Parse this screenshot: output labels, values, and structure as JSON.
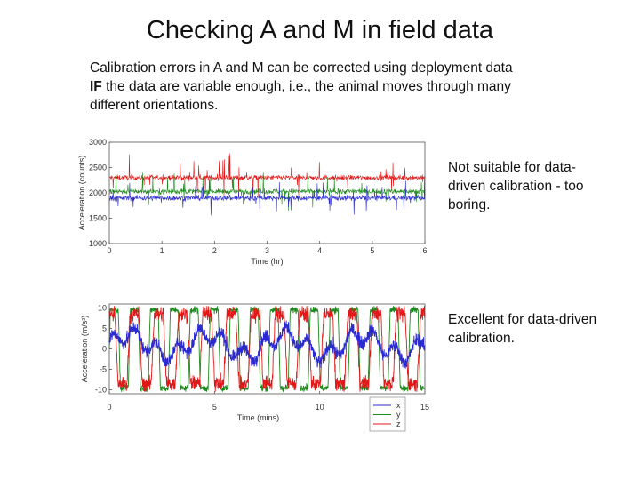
{
  "slide": {
    "title": "Checking A and M in field data",
    "intro_line1": "Calibration errors in A and M can be corrected using deployment data",
    "intro_bold": "IF",
    "intro_line2_rest": " the data are variable enough, i.e., the animal moves through many",
    "intro_line3": "different orientations.",
    "caption_top": "Not suitable for data-driven calibration - too boring.",
    "caption_bottom": "Excellent for data-driven calibration."
  },
  "colors": {
    "x": "#2a2ad0",
    "y": "#1e8a1e",
    "z": "#e01818"
  },
  "chart_data": [
    {
      "type": "line",
      "xlabel": "Time (hr)",
      "ylabel": "Acceleration (counts)",
      "xlim": [
        0,
        6
      ],
      "ylim": [
        1000,
        3000
      ],
      "xticks": [
        "0",
        "1",
        "2",
        "3",
        "4",
        "5",
        "6"
      ],
      "yticks": [
        "1000",
        "1500",
        "2000",
        "2500",
        "3000"
      ],
      "series": [
        {
          "color": "z",
          "mean": 2300,
          "noise": 45
        },
        {
          "color": "y",
          "mean": 2030,
          "noise": 45
        },
        {
          "color": "x",
          "mean": 1900,
          "noise": 45
        }
      ]
    },
    {
      "type": "line",
      "xlabel": "Time (mins)",
      "ylabel": "Acceleration (m/s²)",
      "xlim": [
        0,
        15
      ],
      "ylim": [
        -11,
        11
      ],
      "xticks": [
        "0",
        "5",
        "10",
        "15"
      ],
      "yticks": [
        "-10",
        "-5",
        "0",
        "5",
        "10"
      ],
      "legend": [
        "x",
        "y",
        "z"
      ]
    }
  ]
}
